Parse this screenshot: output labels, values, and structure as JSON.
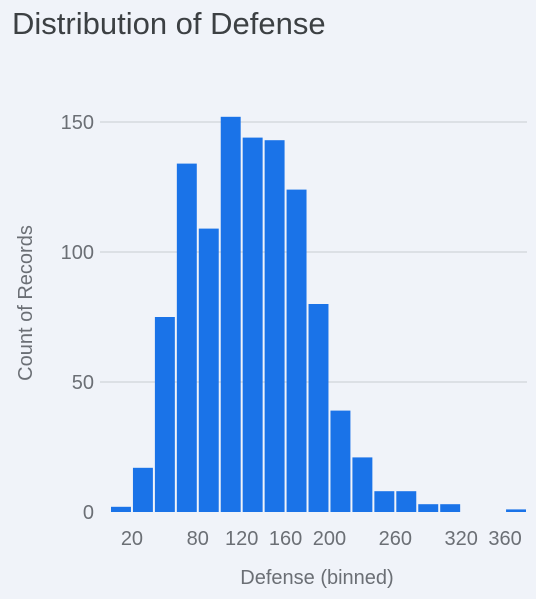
{
  "title": "Distribution of Defense",
  "chart_data": {
    "type": "bar",
    "title": "Distribution of Defense",
    "xlabel": "Defense (binned)",
    "ylabel": "Count of Records",
    "bin_width": 20,
    "bins": [
      {
        "start": 0,
        "end": 20,
        "count": 2
      },
      {
        "start": 20,
        "end": 40,
        "count": 17
      },
      {
        "start": 40,
        "end": 60,
        "count": 75
      },
      {
        "start": 60,
        "end": 80,
        "count": 134
      },
      {
        "start": 80,
        "end": 100,
        "count": 109
      },
      {
        "start": 100,
        "end": 120,
        "count": 152
      },
      {
        "start": 120,
        "end": 140,
        "count": 144
      },
      {
        "start": 140,
        "end": 160,
        "count": 143
      },
      {
        "start": 160,
        "end": 180,
        "count": 124
      },
      {
        "start": 180,
        "end": 200,
        "count": 80
      },
      {
        "start": 200,
        "end": 220,
        "count": 39
      },
      {
        "start": 220,
        "end": 240,
        "count": 21
      },
      {
        "start": 240,
        "end": 260,
        "count": 8
      },
      {
        "start": 260,
        "end": 280,
        "count": 8
      },
      {
        "start": 280,
        "end": 300,
        "count": 3
      },
      {
        "start": 300,
        "end": 320,
        "count": 3
      },
      {
        "start": 320,
        "end": 340,
        "count": 0
      },
      {
        "start": 340,
        "end": 360,
        "count": 0
      },
      {
        "start": 360,
        "end": 380,
        "count": 1
      }
    ],
    "x_ticks": [
      20,
      80,
      120,
      160,
      200,
      260,
      320,
      360
    ],
    "x_tick_labels": [
      "20",
      "80",
      "120",
      "160",
      "200",
      "260",
      "320",
      "360"
    ],
    "y_ticks": [
      0,
      50,
      100,
      150
    ],
    "y_tick_labels": [
      "0",
      "50",
      "100",
      "150"
    ],
    "ylim": [
      0,
      165
    ],
    "grid": true,
    "legend": false,
    "bar_color": "#1a73e8"
  }
}
